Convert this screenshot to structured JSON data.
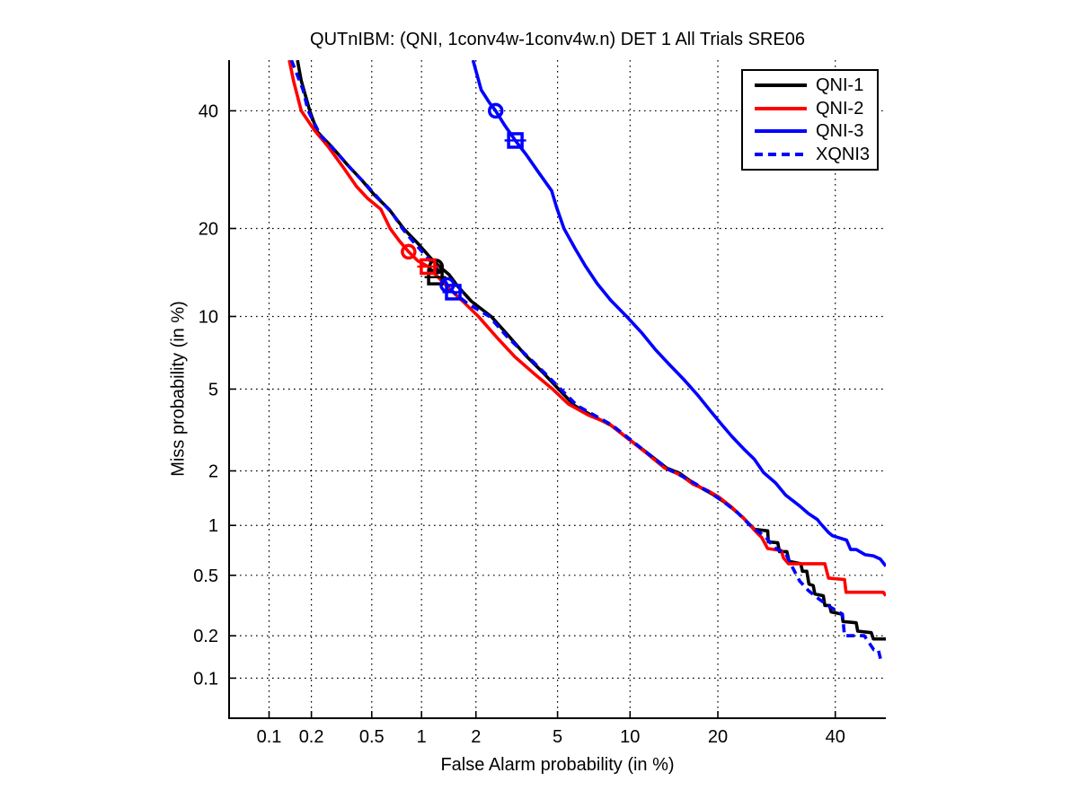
{
  "figure": {
    "title": "QUTnIBM: (QNI, 1conv4w-1conv4w.n) DET 1 All Trials SRE06"
  },
  "chart_data": {
    "type": "line",
    "subtype": "DET-curve",
    "title": "QUTnIBM: (QNI, 1conv4w-1conv4w.n) DET 1 All Trials SRE06",
    "xlabel": "False Alarm probability (in %)",
    "ylabel": "Miss probability (in %)",
    "scale": "probit-probit (normal deviate)",
    "xlim": [
      0.05,
      50
    ],
    "ylim": [
      0.05,
      50
    ],
    "xticks": [
      0.1,
      0.2,
      0.5,
      1,
      2,
      5,
      10,
      20,
      40
    ],
    "yticks": [
      40,
      20,
      10,
      5,
      2,
      1,
      0.5,
      0.2,
      0.1
    ],
    "grid": "dotted",
    "legend_position": "top-right",
    "series": [
      {
        "name": "QNI-1",
        "color": "#000000",
        "line": "solid",
        "points": [
          [
            0.16,
            50
          ],
          [
            0.17,
            45.9
          ],
          [
            0.195,
            40
          ],
          [
            0.22,
            36
          ],
          [
            0.28,
            33
          ],
          [
            0.35,
            30
          ],
          [
            0.43,
            27.5
          ],
          [
            0.52,
            25
          ],
          [
            0.64,
            22.8
          ],
          [
            0.79,
            19.9
          ],
          [
            0.95,
            18
          ],
          [
            1.13,
            16.1
          ],
          [
            1.3,
            14.9
          ],
          [
            1.43,
            14.2
          ],
          [
            1.6,
            12.9
          ],
          [
            1.89,
            11.4
          ],
          [
            2.4,
            10
          ],
          [
            2.9,
            8.5
          ],
          [
            3.55,
            7
          ],
          [
            4.3,
            5.9
          ],
          [
            5.05,
            5
          ],
          [
            5.95,
            4.2
          ],
          [
            7.1,
            3.76
          ],
          [
            8.4,
            3.4
          ],
          [
            9.9,
            2.9
          ],
          [
            11.5,
            2.5
          ],
          [
            13.6,
            2.07
          ],
          [
            15.1,
            1.94
          ],
          [
            16.5,
            1.75
          ],
          [
            18,
            1.6
          ],
          [
            19.5,
            1.48
          ],
          [
            21.4,
            1.32
          ],
          [
            23.7,
            1.11
          ],
          [
            25.5,
            0.95
          ],
          [
            27.7,
            0.93
          ],
          [
            27.8,
            0.8
          ],
          [
            29.4,
            0.79
          ],
          [
            29.7,
            0.7
          ],
          [
            31,
            0.7
          ],
          [
            31.4,
            0.61
          ],
          [
            33.5,
            0.59
          ],
          [
            33.8,
            0.53
          ],
          [
            34.6,
            0.53
          ],
          [
            35,
            0.44
          ],
          [
            35.8,
            0.43
          ],
          [
            36.1,
            0.38
          ],
          [
            37.7,
            0.37
          ],
          [
            38,
            0.32
          ],
          [
            38.9,
            0.32
          ],
          [
            39.2,
            0.29
          ],
          [
            41.3,
            0.28
          ],
          [
            41.5,
            0.25
          ],
          [
            44.1,
            0.245
          ],
          [
            44.4,
            0.215
          ],
          [
            47.1,
            0.21
          ],
          [
            47.5,
            0.19
          ],
          [
            50,
            0.19
          ]
        ],
        "operating_points": {
          "circle": [
            1.21,
            15.1
          ],
          "square": [
            1.2,
            13.9
          ]
        }
      },
      {
        "name": "QNI-2",
        "color": "#ff0000",
        "line": "solid",
        "points": [
          [
            0.14,
            50
          ],
          [
            0.15,
            45.9
          ],
          [
            0.17,
            40
          ],
          [
            0.21,
            36.3
          ],
          [
            0.26,
            33.3
          ],
          [
            0.33,
            29.5
          ],
          [
            0.4,
            26.4
          ],
          [
            0.47,
            24.5
          ],
          [
            0.57,
            22.8
          ],
          [
            0.65,
            20
          ],
          [
            0.74,
            18.3
          ],
          [
            0.84,
            16.9
          ],
          [
            0.95,
            15.8
          ],
          [
            1.09,
            15.1
          ],
          [
            1.23,
            14
          ],
          [
            1.43,
            12.7
          ],
          [
            1.7,
            11.4
          ],
          [
            2.06,
            10
          ],
          [
            2.56,
            8.3
          ],
          [
            3.15,
            6.9
          ],
          [
            3.9,
            5.85
          ],
          [
            4.75,
            5
          ],
          [
            5.6,
            4.27
          ],
          [
            6.8,
            3.8
          ],
          [
            8.3,
            3.45
          ],
          [
            9.7,
            2.96
          ],
          [
            11.4,
            2.5
          ],
          [
            13.4,
            2.07
          ],
          [
            15.2,
            1.9
          ],
          [
            16.7,
            1.7
          ],
          [
            18.6,
            1.57
          ],
          [
            20.1,
            1.45
          ],
          [
            22,
            1.27
          ],
          [
            24.1,
            1.07
          ],
          [
            26,
            0.9
          ],
          [
            26.7,
            0.85
          ],
          [
            27.7,
            0.73
          ],
          [
            30,
            0.71
          ],
          [
            30.4,
            0.64
          ],
          [
            31.3,
            0.59
          ],
          [
            38,
            0.59
          ],
          [
            38.7,
            0.48
          ],
          [
            41.8,
            0.47
          ],
          [
            42.1,
            0.39
          ],
          [
            49.5,
            0.39
          ],
          [
            50,
            0.37
          ]
        ],
        "operating_points": {
          "circle": [
            0.84,
            16.9
          ],
          "square": [
            1.09,
            15.1
          ]
        }
      },
      {
        "name": "QNI-3",
        "color": "#0000ff",
        "line": "solid",
        "points": [
          [
            1.93,
            50
          ],
          [
            2.13,
            44.1
          ],
          [
            2.35,
            41.6
          ],
          [
            2.53,
            40
          ],
          [
            2.8,
            37.3
          ],
          [
            3.17,
            34.4
          ],
          [
            3.58,
            31.8
          ],
          [
            4.1,
            28.7
          ],
          [
            4.7,
            25.7
          ],
          [
            4.95,
            23.1
          ],
          [
            5.34,
            20
          ],
          [
            5.95,
            17.4
          ],
          [
            6.6,
            15.2
          ],
          [
            7.4,
            13.2
          ],
          [
            8.4,
            11.5
          ],
          [
            9.7,
            10
          ],
          [
            11.1,
            8.6
          ],
          [
            12.4,
            7.4
          ],
          [
            13.9,
            6.4
          ],
          [
            15.6,
            5.5
          ],
          [
            17.4,
            4.65
          ],
          [
            18.9,
            4
          ],
          [
            20.3,
            3.5
          ],
          [
            22,
            3
          ],
          [
            23.8,
            2.6
          ],
          [
            25.5,
            2.3
          ],
          [
            27,
            1.96
          ],
          [
            29,
            1.73
          ],
          [
            30.8,
            1.48
          ],
          [
            33.3,
            1.29
          ],
          [
            34.9,
            1.17
          ],
          [
            36.6,
            1.08
          ],
          [
            37.1,
            1.03
          ],
          [
            38.7,
            0.91
          ],
          [
            39.5,
            0.87
          ],
          [
            42.2,
            0.82
          ],
          [
            43,
            0.72
          ],
          [
            44.1,
            0.72
          ],
          [
            45.9,
            0.67
          ],
          [
            47.5,
            0.66
          ],
          [
            48.9,
            0.63
          ],
          [
            50,
            0.57
          ]
        ],
        "operating_points": {
          "circle": [
            2.53,
            40
          ],
          "square": [
            3.17,
            34.4
          ]
        }
      },
      {
        "name": "XQNI3",
        "color": "#0000ff",
        "line": "dashed",
        "points": [
          [
            0.145,
            50
          ],
          [
            0.175,
            44.1
          ],
          [
            0.19,
            40
          ],
          [
            0.23,
            35.4
          ],
          [
            0.29,
            32.5
          ],
          [
            0.37,
            29.3
          ],
          [
            0.46,
            26.7
          ],
          [
            0.55,
            24.5
          ],
          [
            0.67,
            22.2
          ],
          [
            0.77,
            20
          ],
          [
            0.91,
            18
          ],
          [
            1.09,
            16.1
          ],
          [
            1.3,
            14.2
          ],
          [
            1.4,
            13.05
          ],
          [
            1.51,
            12.3
          ],
          [
            1.8,
            11.2
          ],
          [
            2.35,
            10
          ],
          [
            2.9,
            8.3
          ],
          [
            3.65,
            6.9
          ],
          [
            4.4,
            5.85
          ],
          [
            5.2,
            4.97
          ],
          [
            6.1,
            4.2
          ],
          [
            7.3,
            3.76
          ],
          [
            8.5,
            3.4
          ],
          [
            10,
            2.9
          ],
          [
            11.7,
            2.45
          ],
          [
            13.8,
            2.04
          ],
          [
            15.4,
            1.87
          ],
          [
            17.1,
            1.7
          ],
          [
            18.9,
            1.53
          ],
          [
            20.7,
            1.37
          ],
          [
            22.7,
            1.2
          ],
          [
            25.2,
            0.97
          ],
          [
            27.3,
            0.86
          ],
          [
            28.8,
            0.74
          ],
          [
            30.8,
            0.68
          ],
          [
            32,
            0.56
          ],
          [
            33.3,
            0.46
          ],
          [
            34.9,
            0.4
          ],
          [
            37,
            0.35
          ],
          [
            39.2,
            0.31
          ],
          [
            41.4,
            0.28
          ],
          [
            41.8,
            0.2
          ],
          [
            45.7,
            0.2
          ],
          [
            47.6,
            0.16
          ],
          [
            48.5,
            0.16
          ],
          [
            49,
            0.135
          ],
          [
            49.4,
            0.135
          ]
        ],
        "operating_points": {
          "circle": [
            1.4,
            13.05
          ],
          "square": [
            1.51,
            12.3
          ]
        }
      }
    ]
  },
  "legend": {
    "entries": [
      "QNI-1",
      "QNI-2",
      "QNI-3",
      "XQNI3"
    ]
  }
}
